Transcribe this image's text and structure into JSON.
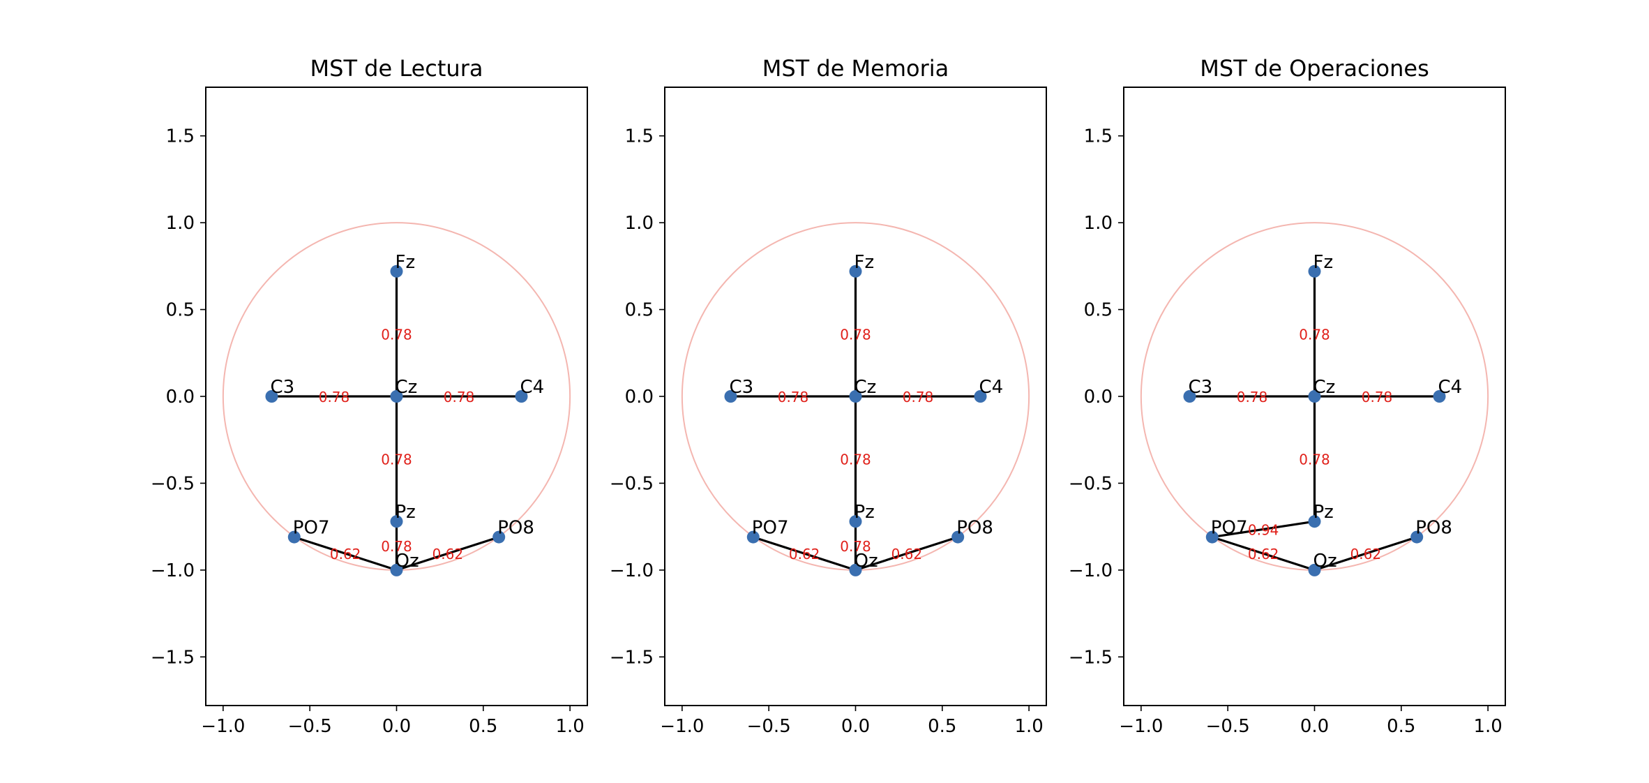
{
  "chart_data": [
    {
      "type": "network",
      "title": "MST de Lectura",
      "xlim": [
        -1.1,
        1.1
      ],
      "ylim": [
        -1.78,
        1.78
      ],
      "xticks": [
        -1.0,
        -0.5,
        0.0,
        0.5,
        1.0
      ],
      "xtick_labels": [
        "−1.0",
        "−0.5",
        "0.0",
        "0.5",
        "1.0"
      ],
      "yticks": [
        1.5,
        1.0,
        0.5,
        0.0,
        -0.5,
        -1.0,
        -1.5
      ],
      "ytick_labels": [
        "1.5",
        "1.0",
        "0.5",
        "0.0",
        "−0.5",
        "−1.0",
        "−1.5"
      ],
      "head_circle": {
        "center": [
          0,
          0
        ],
        "radius": 1.0
      },
      "nodes": [
        {
          "name": "Fz",
          "x": 0.0,
          "y": 0.72
        },
        {
          "name": "C3",
          "x": -0.72,
          "y": 0.0
        },
        {
          "name": "Cz",
          "x": 0.0,
          "y": 0.0
        },
        {
          "name": "C4",
          "x": 0.72,
          "y": 0.0
        },
        {
          "name": "Pz",
          "x": 0.0,
          "y": -0.72
        },
        {
          "name": "PO7",
          "x": -0.59,
          "y": -0.81
        },
        {
          "name": "PO8",
          "x": 0.59,
          "y": -0.81
        },
        {
          "name": "Oz",
          "x": 0.0,
          "y": -1.0
        }
      ],
      "edges": [
        {
          "from": "Fz",
          "to": "Cz",
          "weight": "0.78"
        },
        {
          "from": "C3",
          "to": "Cz",
          "weight": "0.78"
        },
        {
          "from": "Cz",
          "to": "C4",
          "weight": "0.78"
        },
        {
          "from": "Cz",
          "to": "Pz",
          "weight": "0.78"
        },
        {
          "from": "Pz",
          "to": "Oz",
          "weight": "0.78"
        },
        {
          "from": "PO7",
          "to": "Oz",
          "weight": "0.62"
        },
        {
          "from": "PO8",
          "to": "Oz",
          "weight": "0.62"
        }
      ]
    },
    {
      "type": "network",
      "title": "MST de Memoria",
      "xlim": [
        -1.1,
        1.1
      ],
      "ylim": [
        -1.78,
        1.78
      ],
      "xticks": [
        -1.0,
        -0.5,
        0.0,
        0.5,
        1.0
      ],
      "xtick_labels": [
        "−1.0",
        "−0.5",
        "0.0",
        "0.5",
        "1.0"
      ],
      "yticks": [
        1.5,
        1.0,
        0.5,
        0.0,
        -0.5,
        -1.0,
        -1.5
      ],
      "ytick_labels": [
        "1.5",
        "1.0",
        "0.5",
        "0.0",
        "−0.5",
        "−1.0",
        "−1.5"
      ],
      "head_circle": {
        "center": [
          0,
          0
        ],
        "radius": 1.0
      },
      "nodes": [
        {
          "name": "Fz",
          "x": 0.0,
          "y": 0.72
        },
        {
          "name": "C3",
          "x": -0.72,
          "y": 0.0
        },
        {
          "name": "Cz",
          "x": 0.0,
          "y": 0.0
        },
        {
          "name": "C4",
          "x": 0.72,
          "y": 0.0
        },
        {
          "name": "Pz",
          "x": 0.0,
          "y": -0.72
        },
        {
          "name": "PO7",
          "x": -0.59,
          "y": -0.81
        },
        {
          "name": "PO8",
          "x": 0.59,
          "y": -0.81
        },
        {
          "name": "Oz",
          "x": 0.0,
          "y": -1.0
        }
      ],
      "edges": [
        {
          "from": "Fz",
          "to": "Cz",
          "weight": "0.78"
        },
        {
          "from": "C3",
          "to": "Cz",
          "weight": "0.78"
        },
        {
          "from": "Cz",
          "to": "C4",
          "weight": "0.78"
        },
        {
          "from": "Cz",
          "to": "Pz",
          "weight": "0.78"
        },
        {
          "from": "Pz",
          "to": "Oz",
          "weight": "0.78"
        },
        {
          "from": "PO7",
          "to": "Oz",
          "weight": "0.62"
        },
        {
          "from": "PO8",
          "to": "Oz",
          "weight": "0.62"
        }
      ]
    },
    {
      "type": "network",
      "title": "MST de Operaciones",
      "xlim": [
        -1.1,
        1.1
      ],
      "ylim": [
        -1.78,
        1.78
      ],
      "xticks": [
        -1.0,
        -0.5,
        0.0,
        0.5,
        1.0
      ],
      "xtick_labels": [
        "−1.0",
        "−0.5",
        "0.0",
        "0.5",
        "1.0"
      ],
      "yticks": [
        1.5,
        1.0,
        0.5,
        0.0,
        -0.5,
        -1.0,
        -1.5
      ],
      "ytick_labels": [
        "1.5",
        "1.0",
        "0.5",
        "0.0",
        "−0.5",
        "−1.0",
        "−1.5"
      ],
      "head_circle": {
        "center": [
          0,
          0
        ],
        "radius": 1.0
      },
      "nodes": [
        {
          "name": "Fz",
          "x": 0.0,
          "y": 0.72
        },
        {
          "name": "C3",
          "x": -0.72,
          "y": 0.0
        },
        {
          "name": "Cz",
          "x": 0.0,
          "y": 0.0
        },
        {
          "name": "C4",
          "x": 0.72,
          "y": 0.0
        },
        {
          "name": "Pz",
          "x": 0.0,
          "y": -0.72
        },
        {
          "name": "PO7",
          "x": -0.59,
          "y": -0.81
        },
        {
          "name": "PO8",
          "x": 0.59,
          "y": -0.81
        },
        {
          "name": "Oz",
          "x": 0.0,
          "y": -1.0
        }
      ],
      "edges": [
        {
          "from": "Fz",
          "to": "Cz",
          "weight": "0.78"
        },
        {
          "from": "C3",
          "to": "Cz",
          "weight": "0.78"
        },
        {
          "from": "Cz",
          "to": "C4",
          "weight": "0.78"
        },
        {
          "from": "Cz",
          "to": "Pz",
          "weight": "0.78"
        },
        {
          "from": "PO7",
          "to": "Pz",
          "weight": "0.94"
        },
        {
          "from": "PO7",
          "to": "Oz",
          "weight": "0.62"
        },
        {
          "from": "PO8",
          "to": "Oz",
          "weight": "0.62"
        }
      ]
    }
  ],
  "colors": {
    "node": "#3a6fb0",
    "edge": "#000000",
    "weight_label": "#e0201a",
    "head_circle": "#f4b6b0",
    "axes": "#000000"
  }
}
